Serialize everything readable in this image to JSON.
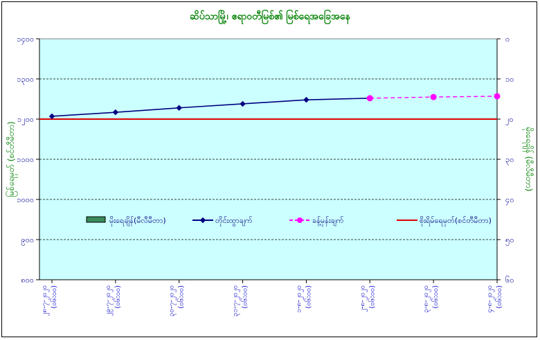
{
  "chart_data": {
    "type": "line",
    "title": "ဆိပ်သာမြို့၊ ဧရာဝတီမြစ်၏ မြစ်ရေအခြေအနေ",
    "ylabel": "မြစ်ရေမှတ် (စင်တီမီတာ)",
    "y2label": "မိုးရေချိန် (မီလီမီတာ)",
    "ylim": [
      800,
      1400
    ],
    "yticks": [
      "၁၄၀၀",
      "၁၃၀၀",
      "၁၂၀၀",
      "၁၁၀၀",
      "၁၀၀၀",
      "၉၀၀",
      "၈၀၀"
    ],
    "y2lim": [
      0,
      60
    ],
    "y2ticks": [
      "၀",
      "၁၀",
      "၂၀",
      "၃၀",
      "၄၀",
      "၅၀",
      "၆၀"
    ],
    "categories": [
      "၂၈-၇-၂၀၂၀ (၀၆:၀၀)",
      "၂၉-၇-၂၀၂၀ (၀၆:၀၀)",
      "၃၀-၇-၂၀၂၀ (၀၆:၀၀)",
      "၃၁-၇-၂၀၂၀ (၀၆:၀၀)",
      "၁-၈-၂၀၂၀ (၀၆:၀၀)",
      "၂-၈-၂၀၂၀ (၀၆:၀၀)",
      "၃-၈-၂၀၂၀ (၀၆:၀၀)",
      "၄-၈-၂၀၂၀ (၀၆:၀၀)"
    ],
    "series": [
      {
        "name": "မိုးရေချိန်(မီလီမီတာ)",
        "type": "bar",
        "color": "#3a8a5a",
        "values": [
          0,
          0,
          0,
          0,
          0,
          0,
          0,
          0
        ]
      },
      {
        "name": "တိုင်းထွာချက်",
        "type": "line",
        "color": "#000080",
        "values": [
          1207,
          1217,
          1228,
          1238,
          1248,
          1252,
          null,
          null
        ]
      },
      {
        "name": "ခန့်မှန်းချက်",
        "type": "line-dashed",
        "color": "#ff00ff",
        "values": [
          null,
          null,
          null,
          null,
          null,
          1252,
          1255,
          1257
        ]
      },
      {
        "name": "စိုးရိမ်ရေမှတ်(စင်တီမီတာ)",
        "type": "hline",
        "color": "#dd0000",
        "value": 1200
      }
    ],
    "grid": true,
    "legend": "center"
  }
}
